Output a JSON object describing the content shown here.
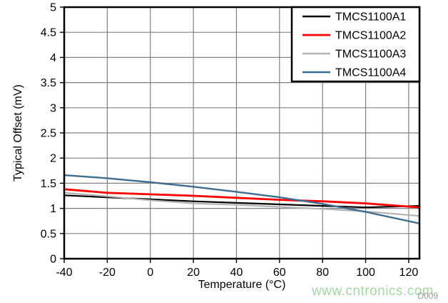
{
  "figure": {
    "watermark": "www.cntronics.com",
    "figure_id": "D009"
  },
  "style": {
    "background": "#ffffff",
    "axis_color": "#000000",
    "grid_color": "#808080",
    "tick_label_color": "#000000",
    "watermark_color": "#a5d6a5",
    "figure_id_color": "#9a9a9a"
  },
  "chart_data": {
    "type": "line",
    "title": "",
    "xlabel": "Temperature (°C)",
    "ylabel": "Typical Offset (mV)",
    "xlim": [
      -40,
      125
    ],
    "ylim": [
      0,
      5
    ],
    "x_ticks": [
      -40,
      -20,
      0,
      20,
      40,
      60,
      80,
      100,
      120
    ],
    "y_ticks": [
      0,
      0.5,
      1,
      1.5,
      2,
      2.5,
      3,
      3.5,
      4,
      4.5,
      5
    ],
    "grid": true,
    "legend_position": "top-right",
    "x": [
      -40,
      -20,
      0,
      20,
      40,
      60,
      80,
      100,
      125
    ],
    "series": [
      {
        "name": "TMCS1100A1",
        "color": "#000000",
        "width": 2.2,
        "values": [
          1.26,
          1.22,
          1.18,
          1.14,
          1.11,
          1.08,
          1.05,
          1.02,
          1.05
        ]
      },
      {
        "name": "TMCS1100A2",
        "color": "#ff0000",
        "width": 2.8,
        "values": [
          1.38,
          1.31,
          1.28,
          1.25,
          1.21,
          1.17,
          1.14,
          1.1,
          1.02
        ]
      },
      {
        "name": "TMCS1100A3",
        "color": "#b3b3b3",
        "width": 2.2,
        "values": [
          1.31,
          1.24,
          1.16,
          1.1,
          1.07,
          1.03,
          0.99,
          0.94,
          0.85
        ]
      },
      {
        "name": "TMCS1100A4",
        "color": "#3f6d8e",
        "width": 2.4,
        "values": [
          1.66,
          1.6,
          1.52,
          1.43,
          1.33,
          1.22,
          1.09,
          0.93,
          0.7
        ]
      }
    ]
  }
}
